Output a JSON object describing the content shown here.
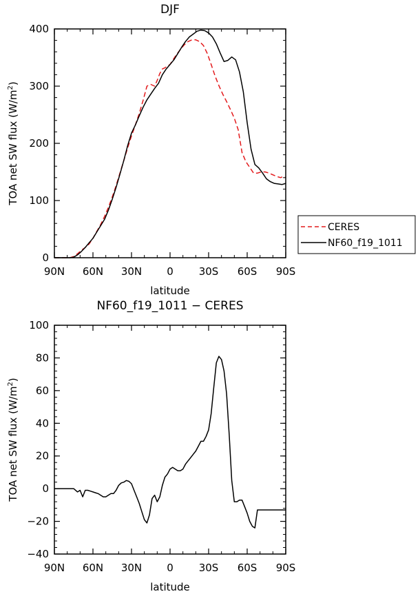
{
  "chart_data": [
    {
      "type": "line",
      "title": "DJF",
      "xlabel": "latitude",
      "ylabel": "TOA net SW flux (W/m²)",
      "ylabel_parts": {
        "text": "TOA net SW flux (W/m",
        "sup": "2",
        "close": ")"
      },
      "xlim": [
        90,
        -90
      ],
      "ylim": [
        0,
        400
      ],
      "xticks": [
        90,
        60,
        30,
        0,
        -30,
        -60,
        -90
      ],
      "xtick_labels": [
        "90N",
        "60N",
        "30N",
        "0",
        "30S",
        "60S",
        "90S"
      ],
      "yticks": [
        0,
        100,
        200,
        300,
        400
      ],
      "ytick_labels": [
        "0",
        "100",
        "200",
        "300",
        "400"
      ],
      "legend": {
        "placement": "outside-right",
        "entries": [
          "CERES",
          "NF60_f19_1011"
        ]
      },
      "series": [
        {
          "name": "CERES",
          "color": "#e31a1c",
          "dash": "dashed",
          "x": [
            90,
            86,
            82,
            78,
            75,
            72,
            69,
            66,
            63,
            60,
            57,
            54,
            51,
            48,
            45,
            42,
            39,
            36,
            33,
            30,
            27,
            24,
            21,
            18,
            15,
            12,
            10,
            8,
            6,
            4,
            2,
            0,
            -2,
            -5,
            -8,
            -11,
            -14,
            -17,
            -20,
            -23,
            -26,
            -29,
            -32,
            -35,
            -38,
            -41,
            -44,
            -47,
            -50,
            -53,
            -56,
            -59,
            -62,
            -65,
            -68,
            -71,
            -74,
            -77,
            -80,
            -83,
            -86,
            -88,
            -90
          ],
          "y": [
            0,
            0,
            0,
            0,
            2,
            7,
            13,
            18,
            24,
            34,
            46,
            58,
            72,
            88,
            106,
            126,
            148,
            170,
            192,
            213,
            232,
            252,
            275,
            300,
            303,
            300,
            310,
            322,
            330,
            332,
            335,
            338,
            345,
            355,
            364,
            372,
            378,
            381,
            381,
            378,
            371,
            357,
            338,
            318,
            301,
            286,
            273,
            259,
            244,
            224,
            184,
            168,
            158,
            148,
            148,
            150,
            150,
            148,
            145,
            142,
            140,
            142,
            140
          ]
        },
        {
          "name": "NF60_f19_1011",
          "color": "#000000",
          "dash": "solid",
          "x": [
            90,
            86,
            82,
            78,
            75,
            72,
            69,
            66,
            63,
            60,
            57,
            54,
            51,
            48,
            45,
            42,
            39,
            36,
            33,
            30,
            27,
            24,
            21,
            18,
            15,
            12,
            9,
            6,
            3,
            0,
            -3,
            -6,
            -9,
            -12,
            -15,
            -18,
            -21,
            -24,
            -27,
            -30,
            -33,
            -36,
            -39,
            -42,
            -45,
            -48,
            -51,
            -54,
            -57,
            -60,
            -63,
            -66,
            -69,
            -72,
            -75,
            -78,
            -81,
            -84,
            -87,
            -90
          ],
          "y": [
            0,
            0,
            0,
            0,
            1,
            5,
            11,
            18,
            26,
            34,
            45,
            56,
            67,
            83,
            102,
            123,
            146,
            170,
            196,
            218,
            232,
            248,
            263,
            276,
            286,
            296,
            305,
            320,
            330,
            338,
            346,
            357,
            368,
            378,
            386,
            391,
            396,
            398,
            397,
            393,
            386,
            374,
            358,
            343,
            345,
            351,
            346,
            325,
            290,
            236,
            190,
            163,
            157,
            148,
            138,
            133,
            130,
            129,
            128,
            130
          ]
        }
      ]
    },
    {
      "type": "line",
      "title": "NF60_f19_1011 − CERES",
      "xlabel": "latitude",
      "ylabel": "TOA net SW flux (W/m²)",
      "ylabel_parts": {
        "text": "TOA net SW flux (W/m",
        "sup": "2",
        "close": ")"
      },
      "xlim": [
        90,
        -90
      ],
      "ylim": [
        -40,
        100
      ],
      "xticks": [
        90,
        60,
        30,
        0,
        -30,
        -60,
        -90
      ],
      "xtick_labels": [
        "90N",
        "60N",
        "30N",
        "0",
        "30S",
        "60S",
        "90S"
      ],
      "yticks": [
        -40,
        -20,
        0,
        20,
        40,
        60,
        80,
        100
      ],
      "ytick_labels": [
        "−40",
        "−20",
        "0",
        "20",
        "40",
        "60",
        "80",
        "100"
      ],
      "series": [
        {
          "name": "NF60_f19_1011 − CERES",
          "color": "#000000",
          "dash": "solid",
          "x": [
            90,
            85,
            80,
            75,
            72,
            70,
            68,
            66,
            64,
            62,
            60,
            58,
            56,
            54,
            52,
            50,
            48,
            46,
            44,
            42,
            40,
            38,
            36,
            34,
            32,
            30,
            28,
            26,
            24,
            22,
            20,
            18,
            16,
            14,
            12,
            10,
            8,
            6,
            4,
            2,
            0,
            -2,
            -4,
            -6,
            -8,
            -10,
            -12,
            -14,
            -16,
            -18,
            -20,
            -22,
            -24,
            -26,
            -28,
            -30,
            -32,
            -34,
            -36,
            -38,
            -40,
            -42,
            -44,
            -46,
            -48,
            -50,
            -52,
            -54,
            -56,
            -58,
            -60,
            -62,
            -64,
            -66,
            -68,
            -70,
            -72,
            -74,
            -76,
            -78,
            -80,
            -82,
            -84,
            -86,
            -88,
            -90
          ],
          "y": [
            0,
            0,
            0,
            0,
            -2,
            -1,
            -5,
            -1,
            -1,
            -1.5,
            -2,
            -2.5,
            -3,
            -4,
            -5,
            -5,
            -4,
            -3,
            -3,
            -1,
            2,
            3.5,
            4,
            5,
            4.5,
            3,
            -1,
            -5,
            -9,
            -14,
            -19,
            -21,
            -16,
            -6,
            -4,
            -8,
            -5,
            2,
            7,
            9,
            12,
            13,
            12,
            11,
            11,
            12,
            15,
            17,
            19,
            21,
            23,
            26,
            29,
            29,
            32,
            36,
            46,
            62,
            77,
            81,
            79,
            72,
            58,
            33,
            5,
            -8,
            -8,
            -7,
            -7,
            -11,
            -15,
            -20,
            -23,
            -24,
            -13,
            -13,
            -13,
            -13,
            -13,
            -13,
            -13,
            -13,
            -13,
            -13,
            -13,
            -13
          ]
        }
      ]
    }
  ]
}
